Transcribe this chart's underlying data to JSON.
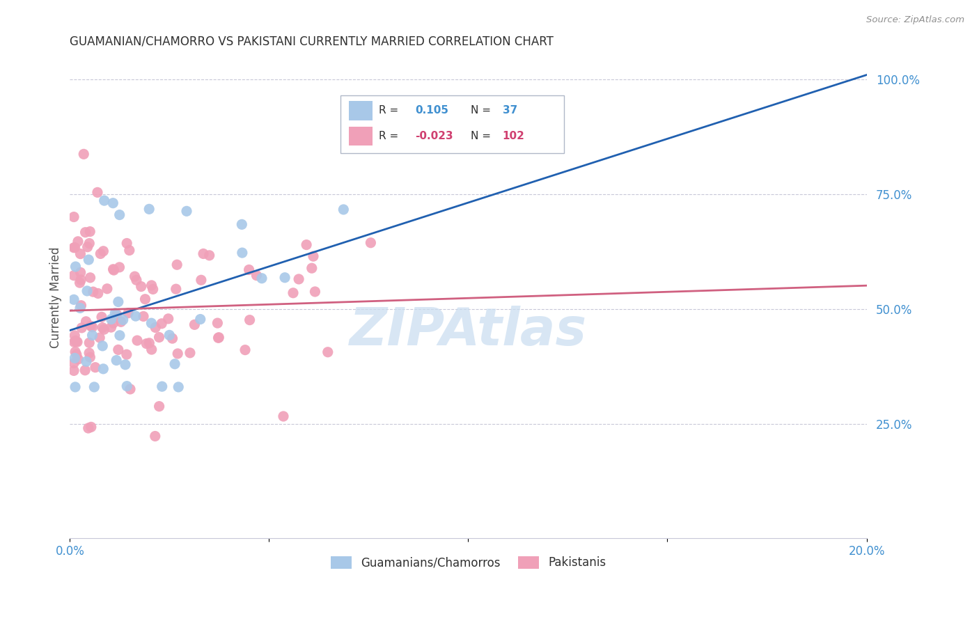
{
  "title": "GUAMANIAN/CHAMORRO VS PAKISTANI CURRENTLY MARRIED CORRELATION CHART",
  "source": "Source: ZipAtlas.com",
  "ylabel": "Currently Married",
  "legend_label1": "Guamanians/Chamorros",
  "legend_label2": "Pakistanis",
  "R1": 0.105,
  "N1": 37,
  "R2": -0.023,
  "N2": 102,
  "color_blue": "#A8C8E8",
  "color_pink": "#F0A0B8",
  "color_blue_text": "#4090D0",
  "color_pink_text": "#D04070",
  "color_line_blue": "#2060B0",
  "color_line_pink": "#D06080",
  "xlim": [
    0.0,
    0.2
  ],
  "ylim": [
    0.0,
    1.05
  ],
  "watermark_color": "#C8DCF0",
  "grid_color": "#C8C8D8",
  "title_color": "#303030",
  "ylabel_color": "#505050",
  "tick_color": "#4090D0",
  "source_color": "#909090"
}
